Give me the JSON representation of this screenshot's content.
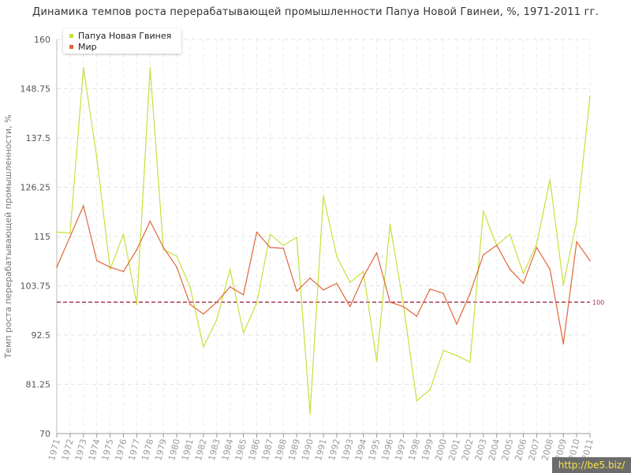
{
  "title": "Динамика темпов роста перерабатывающей промышленности Папуа Новой Гвинеи, %, 1971-2011 гг.",
  "watermark": "http://be5.biz/",
  "chart_data": {
    "type": "line",
    "ylabel": "Темп роста перерабатывающей промышленности, %",
    "xlabel": "",
    "ylim": [
      70,
      160
    ],
    "yticks": [
      "160",
      "148.75",
      "137.5",
      "126.25",
      "115",
      "103.75",
      "92.5",
      "81.25",
      "70"
    ],
    "ytick_values": [
      160,
      148.75,
      137.5,
      126.25,
      115,
      103.75,
      92.5,
      81.25,
      70
    ],
    "x": [
      "1971",
      "1972",
      "1973",
      "1974",
      "1975",
      "1976",
      "1977",
      "1978",
      "1979",
      "1980",
      "1981",
      "1982",
      "1983",
      "1984",
      "1985",
      "1986",
      "1987",
      "1988",
      "1989",
      "1990",
      "1991",
      "1992",
      "1993",
      "1994",
      "1995",
      "1996",
      "1997",
      "1998",
      "1999",
      "2000",
      "2001",
      "2002",
      "2003",
      "2004",
      "2005",
      "2006",
      "2007",
      "2008",
      "2009",
      "2010",
      "2011"
    ],
    "reference_line": {
      "value": 100,
      "label": "100",
      "color": "#a0304a"
    },
    "grid": true,
    "legend_position": "top-left",
    "series": [
      {
        "name": "Папуа Новая Гвинея",
        "color": "#c8df3a",
        "values": [
          116,
          115.8,
          153.5,
          133,
          107.5,
          115.5,
          99.5,
          153.5,
          112,
          110.5,
          103.5,
          89.8,
          96,
          107.5,
          93,
          99.8,
          115.5,
          113,
          114.8,
          74.5,
          124.3,
          110.5,
          104.5,
          107,
          86.5,
          117.8,
          99.5,
          77.5,
          80,
          89,
          87.8,
          86.3,
          120.8,
          113,
          115.5,
          106.5,
          113.3,
          128,
          104,
          118.5,
          147
        ]
      },
      {
        "name": "Мир",
        "color": "#e0653a",
        "values": [
          108,
          115,
          122,
          109.5,
          108,
          107,
          112,
          118.5,
          112.5,
          108,
          99.5,
          97.3,
          100,
          103.5,
          101.7,
          116,
          112.5,
          112.3,
          102.5,
          105.5,
          102.8,
          104.3,
          99,
          105.8,
          111.3,
          100,
          99,
          96.8,
          103,
          102,
          95,
          102,
          110.8,
          113,
          107.5,
          104.3,
          112.5,
          107.5,
          90.5,
          113.8,
          109.5
        ]
      }
    ]
  }
}
